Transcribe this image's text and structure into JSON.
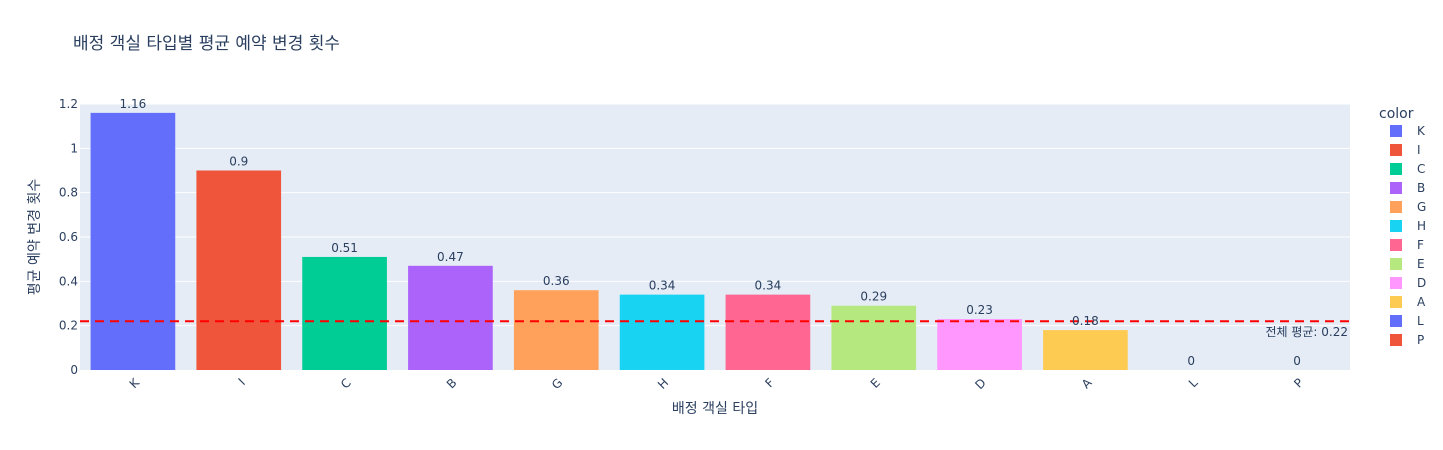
{
  "chart_data": {
    "type": "bar",
    "title": "배정 객실 타입별 평균 예약 변경 횟수",
    "xlabel": "배정 객실 타입",
    "ylabel": "평균 예약 변경 횟수",
    "categories": [
      "K",
      "I",
      "C",
      "B",
      "G",
      "H",
      "F",
      "E",
      "D",
      "A",
      "L",
      "P"
    ],
    "values": [
      1.16,
      0.9,
      0.51,
      0.47,
      0.36,
      0.34,
      0.34,
      0.29,
      0.23,
      0.18,
      0,
      0
    ],
    "data_labels": [
      "1.16",
      "0.9",
      "0.51",
      "0.47",
      "0.36",
      "0.34",
      "0.34",
      "0.29",
      "0.23",
      "0.18",
      "0",
      "0"
    ],
    "colors": [
      "#636efa",
      "#EF553B",
      "#00cc96",
      "#ab63fa",
      "#FFA15A",
      "#19d3f3",
      "#FF6692",
      "#B6E880",
      "#FF97FF",
      "#FECB52",
      "#636efa",
      "#EF553B"
    ],
    "ylim": [
      0,
      1.2
    ],
    "yticks": [
      0,
      0.2,
      0.4,
      0.6,
      0.8,
      1,
      1.2
    ],
    "ytick_labels": [
      "0",
      "0.2",
      "0.4",
      "0.6",
      "0.8",
      "1",
      "1.2"
    ],
    "legend": {
      "title": "color",
      "placement": "right",
      "entries": [
        "K",
        "I",
        "C",
        "B",
        "G",
        "H",
        "F",
        "E",
        "D",
        "A",
        "L",
        "P"
      ]
    },
    "reference_line": {
      "value": 0.22,
      "label": "전체 평균: 0.22",
      "color": "#ff0000",
      "style": "dashed"
    },
    "grid": true,
    "plot_background": "#E5ECF6"
  }
}
